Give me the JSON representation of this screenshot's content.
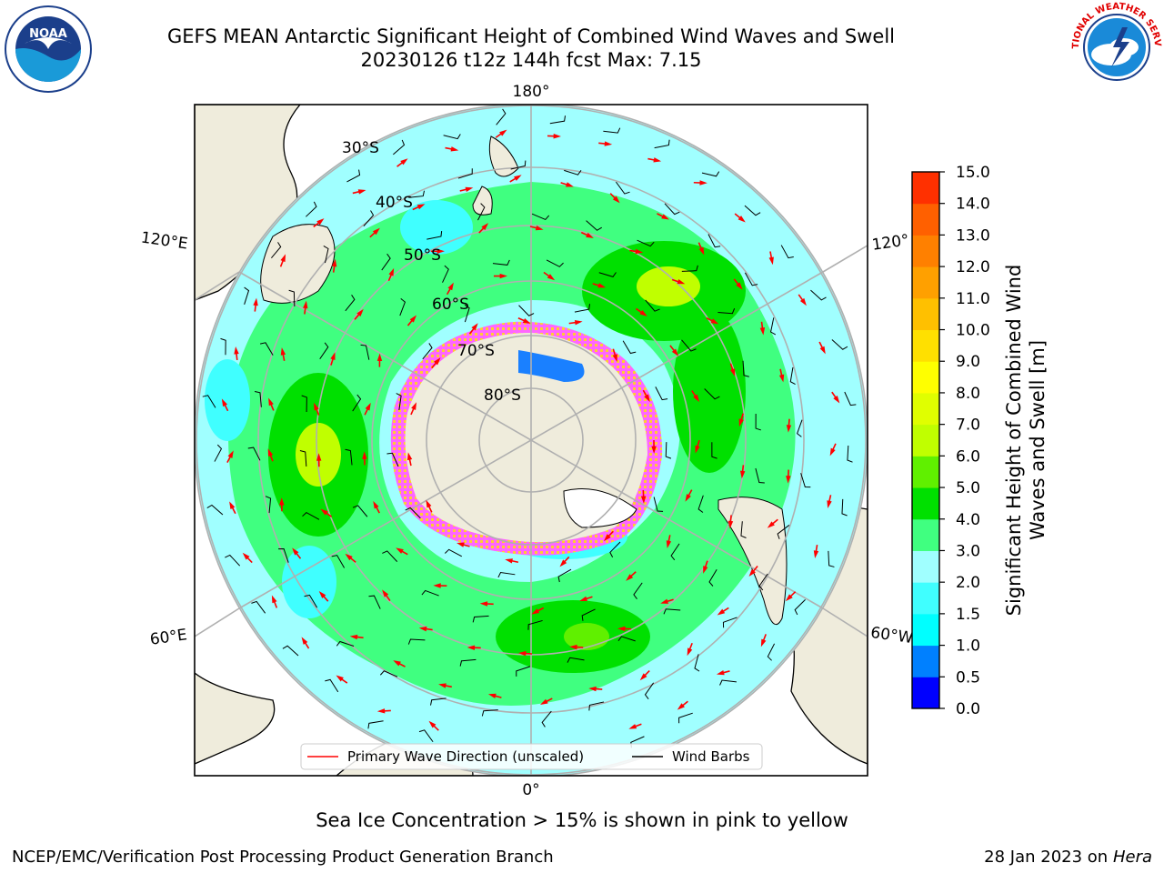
{
  "header": {
    "title_line1": "GEFS MEAN Antarctic Significant Height of Combined Wind Waves and Swell",
    "title_line2": "20230126 t12z 144h fcst   Max: 7.15"
  },
  "logos": {
    "left": "NOAA",
    "left_ring_text": "NATIONAL OCEANIC AND ATMOSPHERIC ADMINISTRATION · U.S. DEPARTMENT OF COMMERCE",
    "right_ring_text": "NATIONAL WEATHER SERVICE"
  },
  "map": {
    "longitude_labels": [
      "180°",
      "0°",
      "120°E",
      "120°",
      "60°E",
      "60°W"
    ],
    "latitude_labels": [
      "30°S",
      "40°S",
      "50°S",
      "60°S",
      "70°S",
      "80°S"
    ],
    "legend": {
      "primary_wave": "Primary Wave Direction (unscaled)",
      "wind_barbs": "Wind Barbs"
    },
    "colors": {
      "land": "#efecdc",
      "ice": "#ff33ff",
      "wave_direction": "#ff0000"
    }
  },
  "colorbar": {
    "label": "Significant Height of Combined Wind Waves and Swell [m]",
    "ticks": [
      "15.0",
      "14.0",
      "13.0",
      "12.0",
      "11.0",
      "10.0",
      "9.0",
      "8.0",
      "7.0",
      "6.0",
      "5.0",
      "4.0",
      "3.0",
      "2.0",
      "1.5",
      "1.0",
      "0.5",
      "0.0"
    ],
    "colors_bottom_to_top": [
      "#0000ff",
      "#0080ff",
      "#00ffff",
      "#40ffff",
      "#a0ffff",
      "#40ff80",
      "#00e000",
      "#60f000",
      "#c0ff00",
      "#e0ff00",
      "#ffff00",
      "#ffe000",
      "#ffc000",
      "#ffa000",
      "#ff8000",
      "#ff6000",
      "#ff3000"
    ]
  },
  "footer": {
    "note": "Sea Ice Concentration > 15% is shown in pink to yellow",
    "credit": "NCEP/EMC/Verification Post Processing Product Generation Branch",
    "date": "28 Jan 2023 on",
    "machine": "Hera"
  }
}
